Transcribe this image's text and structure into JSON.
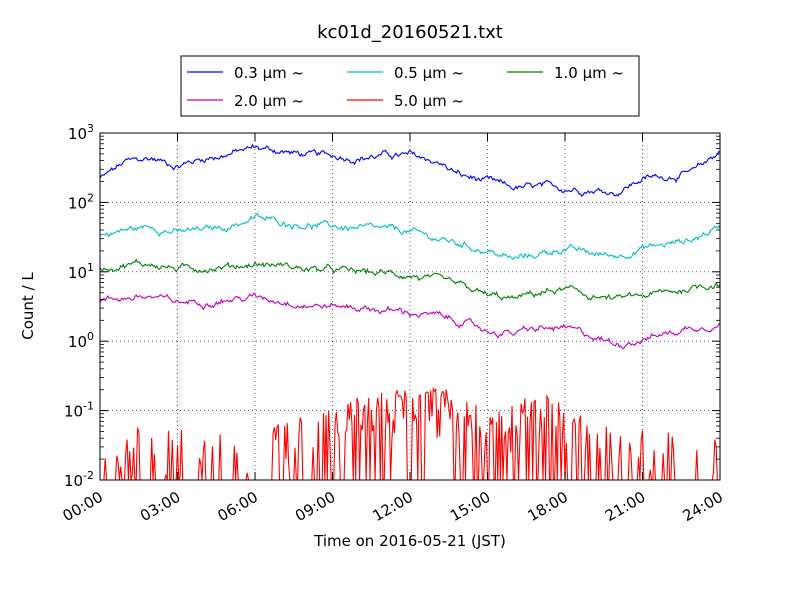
{
  "chart_data": {
    "type": "line",
    "title": "kc01d_20160521.txt",
    "xlabel": "Time on 2016-05-21 (JST)",
    "ylabel": "Count / L",
    "y_scale": "log",
    "ylim": [
      0.01,
      1000
    ],
    "xlim": [
      "00:00",
      "24:00"
    ],
    "x_ticks": [
      "00:00",
      "03:00",
      "06:00",
      "09:00",
      "12:00",
      "15:00",
      "18:00",
      "21:00",
      "24:00"
    ],
    "y_ticks": [
      {
        "value": 0.01,
        "base": "10",
        "exp": "-2"
      },
      {
        "value": 0.1,
        "base": "10",
        "exp": "-1"
      },
      {
        "value": 1,
        "base": "10",
        "exp": "0"
      },
      {
        "value": 10,
        "base": "10",
        "exp": "1"
      },
      {
        "value": 100,
        "base": "10",
        "exp": "2"
      },
      {
        "value": 1000,
        "base": "10",
        "exp": "3"
      }
    ],
    "grid": true,
    "legend_position": "top-center",
    "x_hours": [
      0,
      1,
      2,
      3,
      4,
      5,
      6,
      7,
      8,
      9,
      10,
      11,
      12,
      13,
      14,
      15,
      16,
      17,
      18,
      19,
      20,
      21,
      22,
      23,
      24
    ],
    "series": [
      {
        "name": "0.3 μm ~",
        "color": "#0000ff",
        "values": [
          220,
          380,
          430,
          340,
          430,
          500,
          620,
          550,
          480,
          470,
          440,
          480,
          470,
          390,
          240,
          200,
          160,
          165,
          160,
          155,
          140,
          220,
          240,
          270,
          560
        ]
      },
      {
        "name": "0.5 μm ~",
        "color": "#00bfbf",
        "values": [
          33,
          40,
          45,
          37,
          40,
          45,
          60,
          52,
          48,
          45,
          42,
          40,
          38,
          30,
          25,
          20,
          15,
          18,
          22,
          18,
          17,
          22,
          25,
          30,
          45
        ]
      },
      {
        "name": "1.0 μm ~",
        "color": "#008000",
        "values": [
          11,
          13,
          13,
          11,
          11.5,
          12,
          13,
          12.5,
          11,
          10.5,
          10,
          9.5,
          9,
          7.5,
          6,
          4.5,
          4,
          5,
          5.5,
          4.5,
          4,
          4.5,
          5,
          6,
          7
        ]
      },
      {
        "name": "2.0 μm ~",
        "color": "#bf00bf",
        "values": [
          3.8,
          4.3,
          4.3,
          3.6,
          3.8,
          4,
          4.3,
          3.9,
          3.4,
          3.2,
          3.1,
          2.8,
          2.6,
          2.3,
          1.9,
          1.4,
          1.3,
          1.5,
          1.5,
          1.2,
          0.9,
          1.1,
          1.3,
          1.6,
          1.8
        ]
      },
      {
        "name": "5.0 μm ~",
        "color": "#ff0000",
        "values": [
          0.02,
          0.025,
          0.02,
          0.02,
          0.02,
          0.025,
          0.025,
          0.03,
          0.03,
          0.04,
          0.06,
          0.07,
          0.08,
          0.08,
          0.07,
          0.05,
          0.05,
          0.07,
          0.05,
          0.03,
          0.02,
          0.02,
          0.02,
          0.02,
          0.02
        ]
      }
    ]
  }
}
